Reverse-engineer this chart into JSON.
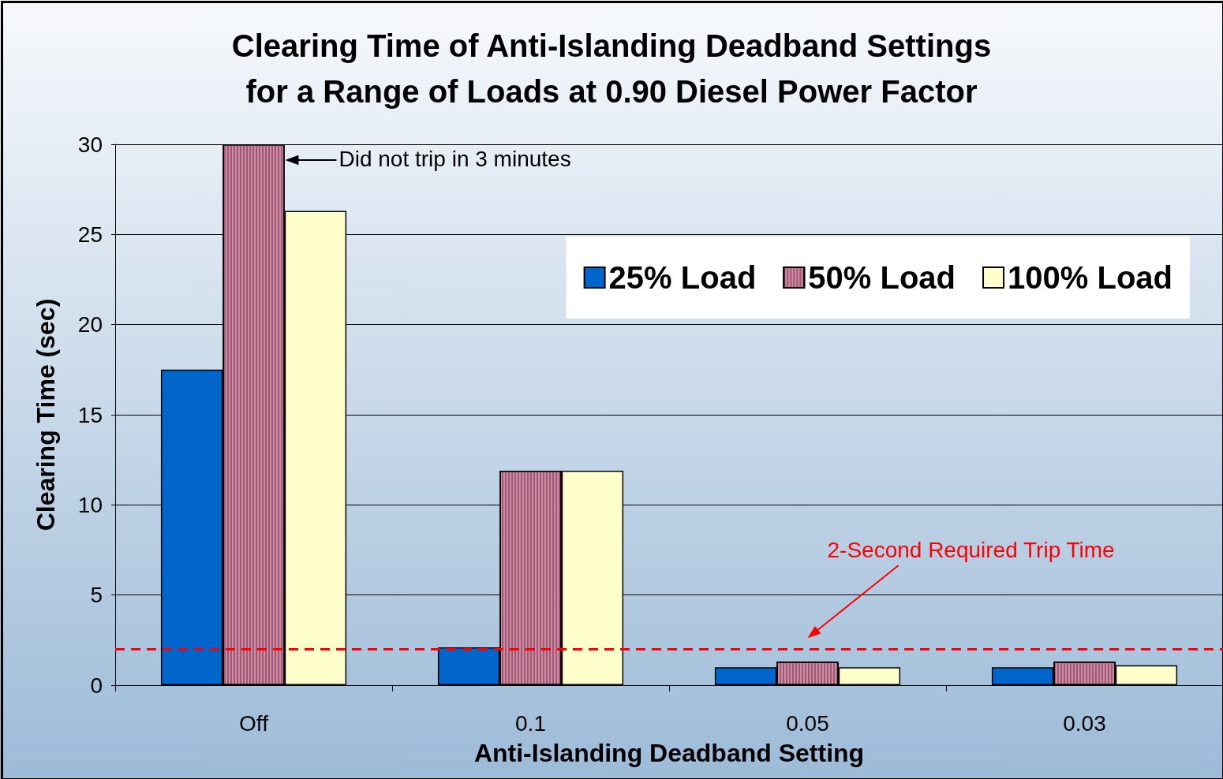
{
  "chart_data": {
    "type": "bar",
    "title": "Clearing Time of Anti-Islanding Deadband Settings\nfor a Range of Loads at 0.90 Diesel Power Factor",
    "xlabel": "Anti-Islanding Deadband Setting",
    "ylabel": "Clearing Time (sec)",
    "categories": [
      "Off",
      "0.1",
      "0.05",
      "0.03"
    ],
    "series": [
      {
        "name": "25% Load",
        "color": "#0066cc",
        "values": [
          17.5,
          2.1,
          1.0,
          1.0
        ]
      },
      {
        "name": "50% Load",
        "color": "#c98ea2",
        "values": [
          30,
          11.9,
          1.3,
          1.3
        ]
      },
      {
        "name": "100% Load",
        "color": "#ffffcc",
        "values": [
          26.3,
          11.9,
          1.0,
          1.1
        ]
      }
    ],
    "ylim": [
      0,
      30
    ],
    "yticks": [
      0,
      5,
      10,
      15,
      20,
      25,
      30
    ],
    "grid": "y",
    "legend": "top right",
    "ref_lines": [
      {
        "axis": "y",
        "value": 2,
        "label": "2-Second Required Trip Time",
        "color": "#ff0000",
        "line_style": "dashed"
      }
    ],
    "annotations": [
      "Did not trip in 3 minutes"
    ]
  }
}
